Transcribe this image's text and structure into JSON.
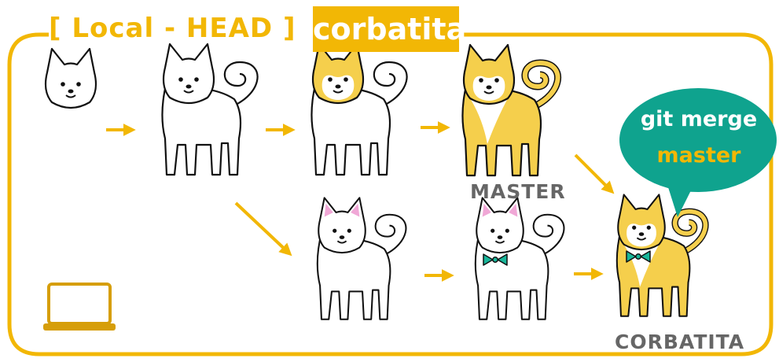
{
  "diagram": {
    "title": "[ Local - HEAD ]",
    "branch": "corbatita",
    "labels": {
      "master": "MASTER",
      "corbatita": "CORBATITA"
    },
    "bubble": {
      "line1": "git merge",
      "line2": "master"
    },
    "colors": {
      "accent": "#f2b705",
      "bubble": "#0fa38e",
      "dog_fill": "#f5cf4c",
      "bowtie": "#19b69a",
      "label": "#666666",
      "ear_pink": "#f0a7d6"
    },
    "icons": [
      "laptop-icon",
      "arrow-icon",
      "shiba-dog-icon"
    ]
  }
}
